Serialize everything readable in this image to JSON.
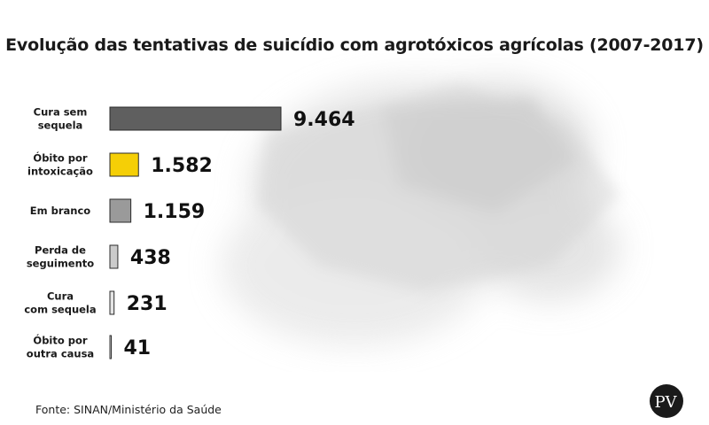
{
  "title": "Evolução das tentativas de suicídio com agrotóxicos agrícolas (2007-2017)",
  "source": "Fonte: SINAN/Ministério da Saúde",
  "logo": {
    "icon": "pv-logo-icon",
    "text": "PV"
  },
  "colors": {
    "dark": "#5f5f5f",
    "yellow": "#f5cf06",
    "mid": "#9a9a9a",
    "light": "#cbcbcb",
    "lighter": "#e4e4e4",
    "outline": "#2b2b2b"
  },
  "chart_data": {
    "type": "bar",
    "orientation": "horizontal",
    "title": "Evolução das tentativas de suicídio com agrotóxicos agrícolas (2007-2017)",
    "categories": [
      [
        "Cura sem",
        "sequela"
      ],
      [
        "Óbito por",
        "intoxicação"
      ],
      [
        "Em branco"
      ],
      [
        "Perda de",
        "seguimento"
      ],
      [
        "Cura",
        "com sequela"
      ],
      [
        "Óbito por",
        "outra causa"
      ]
    ],
    "values": [
      9464,
      1582,
      1159,
      438,
      231,
      41
    ],
    "value_labels": [
      "9.464",
      "1.582",
      "1.159",
      "438",
      "231",
      "41"
    ],
    "bar_colors": [
      "#5f5f5f",
      "#f5cf06",
      "#9a9a9a",
      "#cbcbcb",
      "#e4e4e4",
      "#ffffff"
    ],
    "xlim": [
      0,
      9464
    ],
    "grid": false,
    "legend": "none"
  }
}
